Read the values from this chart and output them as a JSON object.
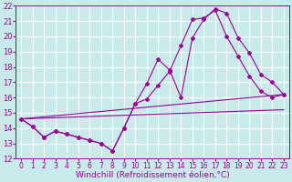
{
  "background_color": "#c8eaea",
  "grid_color": "#ffffff",
  "line_color": "#990099",
  "xlabel": "Windchill (Refroidissement éolien,°C)",
  "xlabel_fontsize": 6.5,
  "tick_fontsize": 5.5,
  "xlim": [
    -0.5,
    23.5
  ],
  "ylim": [
    12,
    22
  ],
  "xticks": [
    0,
    1,
    2,
    3,
    4,
    5,
    6,
    7,
    8,
    9,
    10,
    11,
    12,
    13,
    14,
    15,
    16,
    17,
    18,
    19,
    20,
    21,
    22,
    23
  ],
  "yticks": [
    12,
    13,
    14,
    15,
    16,
    17,
    18,
    19,
    20,
    21,
    22
  ],
  "series": [
    {
      "x": [
        0,
        1,
        2,
        3,
        4,
        5,
        6,
        7,
        8,
        9,
        10,
        11,
        12,
        13,
        14,
        15,
        16,
        17,
        18,
        19,
        20,
        21,
        22,
        23
      ],
      "y": [
        14.6,
        14.1,
        13.4,
        13.8,
        13.6,
        13.4,
        13.2,
        13.0,
        12.5,
        14.0,
        15.6,
        16.9,
        18.5,
        17.8,
        16.0,
        19.9,
        21.1,
        21.8,
        21.5,
        19.9,
        18.9,
        17.5,
        17.0,
        16.2
      ],
      "marker": true
    },
    {
      "x": [
        0,
        1,
        2,
        3,
        4,
        5,
        6,
        7,
        8,
        9,
        10,
        11,
        12,
        13,
        14,
        15,
        16,
        17,
        18,
        19,
        20,
        21,
        22,
        23
      ],
      "y": [
        14.6,
        14.1,
        13.4,
        13.8,
        13.6,
        13.4,
        13.2,
        13.0,
        12.5,
        14.0,
        15.6,
        15.9,
        16.8,
        17.7,
        19.4,
        21.1,
        21.2,
        21.7,
        20.0,
        18.7,
        17.4,
        16.4,
        16.0,
        16.2
      ],
      "marker": true
    },
    {
      "x": [
        0,
        23
      ],
      "y": [
        14.6,
        16.2
      ],
      "marker": false
    },
    {
      "x": [
        0,
        23
      ],
      "y": [
        14.6,
        15.2
      ],
      "marker": false
    }
  ]
}
